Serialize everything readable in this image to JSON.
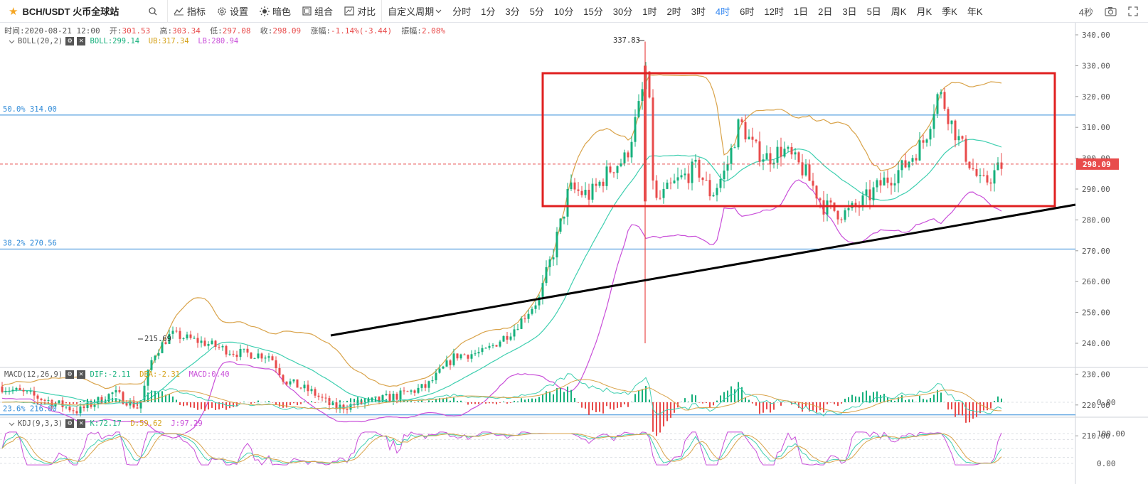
{
  "toolbar": {
    "symbol": "BCH/USDT 火币全球站",
    "tools": [
      "指标",
      "设置",
      "暗色",
      "组合",
      "对比"
    ],
    "custom_period": "自定义周期",
    "periods": [
      "分时",
      "1分",
      "3分",
      "5分",
      "10分",
      "15分",
      "30分",
      "1时",
      "2时",
      "3时",
      "4时",
      "6时",
      "12时",
      "1日",
      "2日",
      "3日",
      "5日",
      "周K",
      "月K",
      "季K",
      "年K"
    ],
    "active_period": "4时",
    "refresh": "4秒"
  },
  "info": {
    "time_label": "时间:",
    "time": "2020-08-21 12:00",
    "open_label": "开:",
    "open": "301.53",
    "high_label": "高:",
    "high": "303.34",
    "low_label": "低:",
    "low": "297.08",
    "close_label": "收:",
    "close": "298.09",
    "change_label": "涨幅:",
    "change": "-1.14%(-3.44)",
    "amp_label": "振幅:",
    "amp": "2.08%"
  },
  "boll": {
    "name": "BOLL(20,2)",
    "mid": "BOLL:299.14",
    "ub": "UB:317.34",
    "lb": "LB:280.94"
  },
  "macd": {
    "name": "MACD(12,26,9)",
    "dif": "DIF:-2.11",
    "dea": "DEA:-2.31",
    "macd": "MACD:0.40"
  },
  "kdj": {
    "name": "KDJ(9,3,3)",
    "k": "K:72.17",
    "d": "D:59.62",
    "j": "J:97.29"
  },
  "price_axis": [
    "340.00",
    "330.00",
    "320.00",
    "310.00",
    "300.00",
    "290.00",
    "280.00",
    "270.00",
    "260.00",
    "250.00",
    "240.00",
    "230.00",
    "220.00",
    "210.00"
  ],
  "current_price": "298.09",
  "fib_levels": [
    {
      "label": "50.0% 314.00",
      "price": 314.0
    },
    {
      "label": "38.2% 270.56",
      "price": 270.56
    },
    {
      "label": "23.6% 216.80",
      "price": 216.8
    }
  ],
  "annotations": {
    "high": "337.83",
    "low": "215.69"
  },
  "macd_axis": [
    "0.00"
  ],
  "kdj_axis": [
    "100.00",
    "0.00"
  ],
  "colors": {
    "up": "#16b07c",
    "down": "#e84b4b",
    "boll_mid": "#3fcfb0",
    "boll_ub": "#d9a34a",
    "boll_lb": "#c94fd9",
    "fib": "#2e8ad8",
    "box": "#e02020",
    "trend": "#000000",
    "accent": "#2f84f1"
  }
}
